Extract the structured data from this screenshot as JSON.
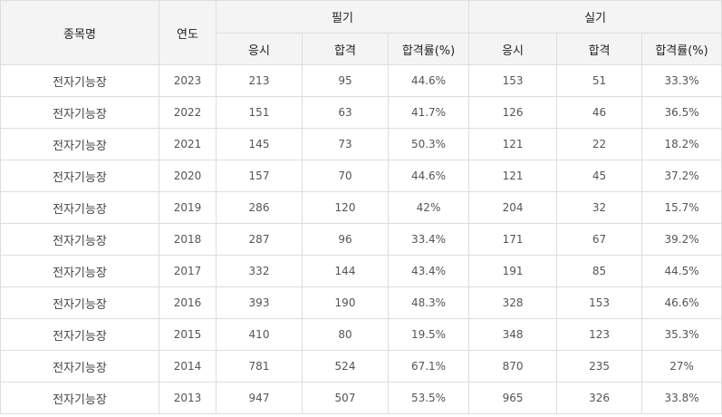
{
  "header": {
    "subject": "종목명",
    "year": "연도",
    "written_group": "필기",
    "practical_group": "실기",
    "written_cols": [
      "응시",
      "합격",
      "합격률(%)"
    ],
    "practical_cols": [
      "응시",
      "합격",
      "합격률(%)"
    ]
  },
  "rows": [
    {
      "subject": "전자기능장",
      "year": "2023",
      "w_apply": "213",
      "w_pass": "95",
      "w_rate": "44.6%",
      "p_apply": "153",
      "p_pass": "51",
      "p_rate": "33.3%"
    },
    {
      "subject": "전자기능장",
      "year": "2022",
      "w_apply": "151",
      "w_pass": "63",
      "w_rate": "41.7%",
      "p_apply": "126",
      "p_pass": "46",
      "p_rate": "36.5%"
    },
    {
      "subject": "전자기능장",
      "year": "2021",
      "w_apply": "145",
      "w_pass": "73",
      "w_rate": "50.3%",
      "p_apply": "121",
      "p_pass": "22",
      "p_rate": "18.2%"
    },
    {
      "subject": "전자기능장",
      "year": "2020",
      "w_apply": "157",
      "w_pass": "70",
      "w_rate": "44.6%",
      "p_apply": "121",
      "p_pass": "45",
      "p_rate": "37.2%"
    },
    {
      "subject": "전자기능장",
      "year": "2019",
      "w_apply": "286",
      "w_pass": "120",
      "w_rate": "42%",
      "p_apply": "204",
      "p_pass": "32",
      "p_rate": "15.7%"
    },
    {
      "subject": "전자기능장",
      "year": "2018",
      "w_apply": "287",
      "w_pass": "96",
      "w_rate": "33.4%",
      "p_apply": "171",
      "p_pass": "67",
      "p_rate": "39.2%"
    },
    {
      "subject": "전자기능장",
      "year": "2017",
      "w_apply": "332",
      "w_pass": "144",
      "w_rate": "43.4%",
      "p_apply": "191",
      "p_pass": "85",
      "p_rate": "44.5%"
    },
    {
      "subject": "전자기능장",
      "year": "2016",
      "w_apply": "393",
      "w_pass": "190",
      "w_rate": "48.3%",
      "p_apply": "328",
      "p_pass": "153",
      "p_rate": "46.6%"
    },
    {
      "subject": "전자기능장",
      "year": "2015",
      "w_apply": "410",
      "w_pass": "80",
      "w_rate": "19.5%",
      "p_apply": "348",
      "p_pass": "123",
      "p_rate": "35.3%"
    },
    {
      "subject": "전자기능장",
      "year": "2014",
      "w_apply": "781",
      "w_pass": "524",
      "w_rate": "67.1%",
      "p_apply": "870",
      "p_pass": "235",
      "p_rate": "27%"
    },
    {
      "subject": "전자기능장",
      "year": "2013",
      "w_apply": "947",
      "w_pass": "507",
      "w_rate": "53.5%",
      "p_apply": "965",
      "p_pass": "326",
      "p_rate": "33.8%"
    }
  ]
}
